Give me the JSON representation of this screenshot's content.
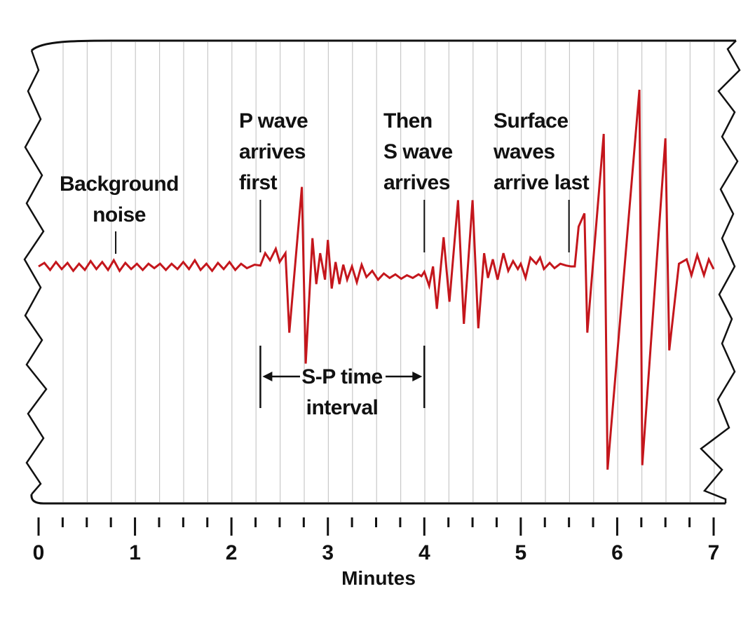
{
  "colors": {
    "trace": "#c4161c",
    "gridline": "#c8c8c8",
    "ink": "#111111",
    "paper": "#ffffff"
  },
  "annotations": {
    "background": [
      "Background",
      "noise"
    ],
    "p_wave": [
      "P wave",
      "arrives",
      "first"
    ],
    "s_wave": [
      "Then",
      "S wave",
      "arrives"
    ],
    "surface": [
      "Surface",
      "waves",
      "arrive last"
    ],
    "sp_interval": [
      "S-P time",
      "interval"
    ]
  },
  "axis": {
    "title": "Minutes",
    "tick_labels": [
      "0",
      "1",
      "2",
      "3",
      "4",
      "5",
      "6",
      "7"
    ],
    "range": [
      0,
      7
    ],
    "minor_ticks_per_minute": 4
  },
  "events": {
    "p_arrival_min": 2.3,
    "s_arrival_min": 4.0,
    "surface_arrival_min": 5.5,
    "noise_marker_min": 0.8
  },
  "trace": [
    [
      0.0,
      0.0
    ],
    [
      0.06,
      0.4
    ],
    [
      0.12,
      -0.4
    ],
    [
      0.18,
      0.5
    ],
    [
      0.24,
      -0.3
    ],
    [
      0.3,
      0.4
    ],
    [
      0.36,
      -0.5
    ],
    [
      0.42,
      0.3
    ],
    [
      0.48,
      -0.4
    ],
    [
      0.54,
      0.6
    ],
    [
      0.6,
      -0.3
    ],
    [
      0.66,
      0.5
    ],
    [
      0.72,
      -0.4
    ],
    [
      0.78,
      0.7
    ],
    [
      0.84,
      -0.5
    ],
    [
      0.9,
      0.4
    ],
    [
      0.96,
      -0.3
    ],
    [
      1.02,
      0.3
    ],
    [
      1.08,
      -0.4
    ],
    [
      1.14,
      0.3
    ],
    [
      1.2,
      -0.2
    ],
    [
      1.26,
      0.3
    ],
    [
      1.32,
      -0.4
    ],
    [
      1.38,
      0.3
    ],
    [
      1.44,
      -0.3
    ],
    [
      1.5,
      0.5
    ],
    [
      1.56,
      -0.3
    ],
    [
      1.62,
      0.7
    ],
    [
      1.68,
      -0.4
    ],
    [
      1.74,
      0.3
    ],
    [
      1.8,
      -0.5
    ],
    [
      1.86,
      0.4
    ],
    [
      1.92,
      -0.3
    ],
    [
      1.98,
      0.5
    ],
    [
      2.04,
      -0.4
    ],
    [
      2.1,
      0.3
    ],
    [
      2.16,
      -0.2
    ],
    [
      2.24,
      0.2
    ],
    [
      2.3,
      0.1
    ],
    [
      2.35,
      1.5
    ],
    [
      2.4,
      0.7
    ],
    [
      2.46,
      2.0
    ],
    [
      2.5,
      0.5
    ],
    [
      2.56,
      1.5
    ],
    [
      2.6,
      -7.5
    ],
    [
      2.73,
      9.0
    ],
    [
      2.77,
      -11.0
    ],
    [
      2.84,
      3.2
    ],
    [
      2.88,
      -2.0
    ],
    [
      2.92,
      1.5
    ],
    [
      2.97,
      -1.5
    ],
    [
      3.0,
      3.0
    ],
    [
      3.04,
      -2.5
    ],
    [
      3.08,
      0.5
    ],
    [
      3.12,
      -2.0
    ],
    [
      3.16,
      0.2
    ],
    [
      3.2,
      -1.5
    ],
    [
      3.25,
      0.0
    ],
    [
      3.3,
      -1.8
    ],
    [
      3.35,
      0.2
    ],
    [
      3.4,
      -1.2
    ],
    [
      3.46,
      -0.5
    ],
    [
      3.52,
      -1.5
    ],
    [
      3.58,
      -0.8
    ],
    [
      3.64,
      -1.3
    ],
    [
      3.7,
      -0.9
    ],
    [
      3.76,
      -1.4
    ],
    [
      3.82,
      -1.0
    ],
    [
      3.88,
      -1.3
    ],
    [
      3.94,
      -0.9
    ],
    [
      3.97,
      -1.1
    ],
    [
      4.0,
      -0.6
    ],
    [
      4.05,
      -2.2
    ],
    [
      4.09,
      0.0
    ],
    [
      4.13,
      -4.8
    ],
    [
      4.2,
      3.3
    ],
    [
      4.26,
      -4.0
    ],
    [
      4.35,
      7.5
    ],
    [
      4.41,
      -6.5
    ],
    [
      4.5,
      7.5
    ],
    [
      4.56,
      -7.0
    ],
    [
      4.62,
      1.5
    ],
    [
      4.66,
      -1.3
    ],
    [
      4.71,
      0.8
    ],
    [
      4.76,
      -1.5
    ],
    [
      4.82,
      1.5
    ],
    [
      4.87,
      -0.5
    ],
    [
      4.92,
      0.6
    ],
    [
      4.97,
      -0.3
    ],
    [
      5.0,
      0.3
    ],
    [
      5.05,
      -1.3
    ],
    [
      5.1,
      1.0
    ],
    [
      5.16,
      0.3
    ],
    [
      5.2,
      1.0
    ],
    [
      5.24,
      -0.3
    ],
    [
      5.3,
      0.4
    ],
    [
      5.35,
      -0.2
    ],
    [
      5.41,
      0.3
    ],
    [
      5.47,
      0.1
    ],
    [
      5.52,
      0.0
    ],
    [
      5.56,
      0.0
    ],
    [
      5.6,
      4.5
    ],
    [
      5.66,
      6.0
    ],
    [
      5.69,
      -7.5
    ],
    [
      5.86,
      15.0
    ],
    [
      5.9,
      -23.0
    ],
    [
      6.23,
      20.0
    ],
    [
      6.26,
      -22.5
    ],
    [
      6.5,
      14.5
    ],
    [
      6.54,
      -9.5
    ],
    [
      6.64,
      0.3
    ],
    [
      6.72,
      0.8
    ],
    [
      6.77,
      -1.0
    ],
    [
      6.83,
      1.3
    ],
    [
      6.9,
      -1.0
    ],
    [
      6.95,
      0.8
    ],
    [
      7.0,
      -0.3
    ]
  ]
}
